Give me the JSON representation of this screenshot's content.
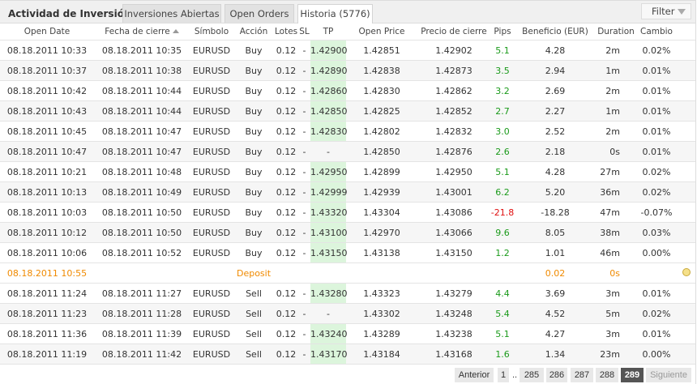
{
  "header": {
    "title": "Actividad de Inversión",
    "tabs": [
      {
        "label": "Inversiones Abiertas"
      },
      {
        "label": "Open Orders"
      },
      {
        "label": "Historia (5776)"
      }
    ],
    "active_tab": 2,
    "filter_label": "Filter"
  },
  "columns": [
    "Open Date",
    "Fecha de cierre",
    "Símbolo",
    "Acción",
    "Lotes",
    "SL",
    "TP",
    "Open Price",
    "Precio de cierre",
    "Pips",
    "Beneficio (EUR)",
    "Duration",
    "Cambio"
  ],
  "sort": {
    "column": "Fecha de cierre",
    "direction": "asc"
  },
  "colors": {
    "positive": "#1a9a1a",
    "negative": "#e01010",
    "deposit": "#f08a00",
    "tp_highlight": "#dcf5dc",
    "current_page": "#555555"
  },
  "rows": [
    [
      "08.18.2011 10:33",
      "08.18.2011 10:35",
      "EURUSD",
      "Buy",
      "0.12",
      "-",
      "1.42900",
      "1.42851",
      "1.42902",
      "5.1",
      "4.28",
      "2m",
      "0.02%"
    ],
    [
      "08.18.2011 10:37",
      "08.18.2011 10:38",
      "EURUSD",
      "Buy",
      "0.12",
      "-",
      "1.42890",
      "1.42838",
      "1.42873",
      "3.5",
      "2.94",
      "1m",
      "0.01%"
    ],
    [
      "08.18.2011 10:42",
      "08.18.2011 10:44",
      "EURUSD",
      "Buy",
      "0.12",
      "-",
      "1.42860",
      "1.42830",
      "1.42862",
      "3.2",
      "2.69",
      "2m",
      "0.01%"
    ],
    [
      "08.18.2011 10:43",
      "08.18.2011 10:44",
      "EURUSD",
      "Buy",
      "0.12",
      "-",
      "1.42850",
      "1.42825",
      "1.42852",
      "2.7",
      "2.27",
      "1m",
      "0.01%"
    ],
    [
      "08.18.2011 10:45",
      "08.18.2011 10:47",
      "EURUSD",
      "Buy",
      "0.12",
      "-",
      "1.42830",
      "1.42802",
      "1.42832",
      "3.0",
      "2.52",
      "2m",
      "0.01%"
    ],
    [
      "08.18.2011 10:47",
      "08.18.2011 10:47",
      "EURUSD",
      "Buy",
      "0.12",
      "-",
      "-",
      "1.42850",
      "1.42876",
      "2.6",
      "2.18",
      "0s",
      "0.01%"
    ],
    [
      "08.18.2011 10:21",
      "08.18.2011 10:48",
      "EURUSD",
      "Buy",
      "0.12",
      "-",
      "1.42950",
      "1.42899",
      "1.42950",
      "5.1",
      "4.28",
      "27m",
      "0.02%"
    ],
    [
      "08.18.2011 10:13",
      "08.18.2011 10:49",
      "EURUSD",
      "Buy",
      "0.12",
      "-",
      "1.42999",
      "1.42939",
      "1.43001",
      "6.2",
      "5.20",
      "36m",
      "0.02%"
    ],
    [
      "08.18.2011 10:03",
      "08.18.2011 10:50",
      "EURUSD",
      "Buy",
      "0.12",
      "-",
      "1.43320",
      "1.43304",
      "1.43086",
      "-21.8",
      "-18.28",
      "47m",
      "-0.07%"
    ],
    [
      "08.18.2011 10:12",
      "08.18.2011 10:50",
      "EURUSD",
      "Buy",
      "0.12",
      "-",
      "1.43100",
      "1.42970",
      "1.43066",
      "9.6",
      "8.05",
      "38m",
      "0.03%"
    ],
    [
      "08.18.2011 10:06",
      "08.18.2011 10:52",
      "EURUSD",
      "Buy",
      "0.12",
      "-",
      "1.43150",
      "1.43138",
      "1.43150",
      "1.2",
      "1.01",
      "46m",
      "0.00%"
    ],
    [
      "08.18.2011 10:55",
      "",
      "",
      "Deposit",
      "",
      "",
      "",
      "",
      "",
      "",
      "0.02",
      "0s",
      ""
    ],
    [
      "08.18.2011 11:24",
      "08.18.2011 11:27",
      "EURUSD",
      "Sell",
      "0.12",
      "-",
      "1.43280",
      "1.43323",
      "1.43279",
      "4.4",
      "3.69",
      "3m",
      "0.01%"
    ],
    [
      "08.18.2011 11:23",
      "08.18.2011 11:28",
      "EURUSD",
      "Sell",
      "0.12",
      "-",
      "-",
      "1.43302",
      "1.43248",
      "5.4",
      "4.52",
      "5m",
      "0.02%"
    ],
    [
      "08.18.2011 11:36",
      "08.18.2011 11:39",
      "EURUSD",
      "Sell",
      "0.12",
      "-",
      "1.43240",
      "1.43289",
      "1.43238",
      "5.1",
      "4.27",
      "3m",
      "0.01%"
    ],
    [
      "08.18.2011 11:19",
      "08.18.2011 11:42",
      "EURUSD",
      "Sell",
      "0.12",
      "-",
      "1.43170",
      "1.43184",
      "1.43168",
      "1.6",
      "1.34",
      "23m",
      "0.00%"
    ]
  ],
  "pagination": {
    "prev": "Anterior",
    "pages": [
      "1",
      "..",
      "285",
      "286",
      "287",
      "288",
      "289"
    ],
    "current": "289",
    "next": "Siguiente"
  }
}
